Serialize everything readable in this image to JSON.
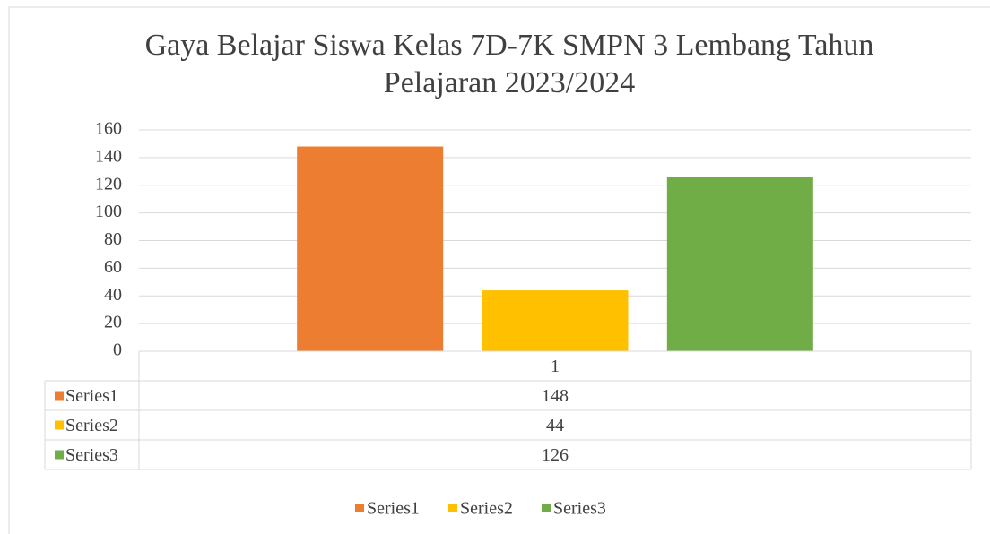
{
  "chart_data": {
    "type": "bar",
    "title": "Gaya Belajar Siswa Kelas 7D-7K SMPN 3 Lembang Tahun Pelajaran 2023/2024",
    "categories": [
      "1"
    ],
    "series": [
      {
        "name": "Series1",
        "color": "#ed7d31",
        "values": [
          148
        ]
      },
      {
        "name": "Series2",
        "color": "#ffc000",
        "values": [
          44
        ]
      },
      {
        "name": "Series3",
        "color": "#70ad47",
        "values": [
          126
        ]
      }
    ],
    "ylim": [
      0,
      160
    ],
    "yticks": [
      0,
      20,
      40,
      60,
      80,
      100,
      120,
      140,
      160
    ],
    "grid": true,
    "legend": "bottom",
    "data_table": true
  }
}
